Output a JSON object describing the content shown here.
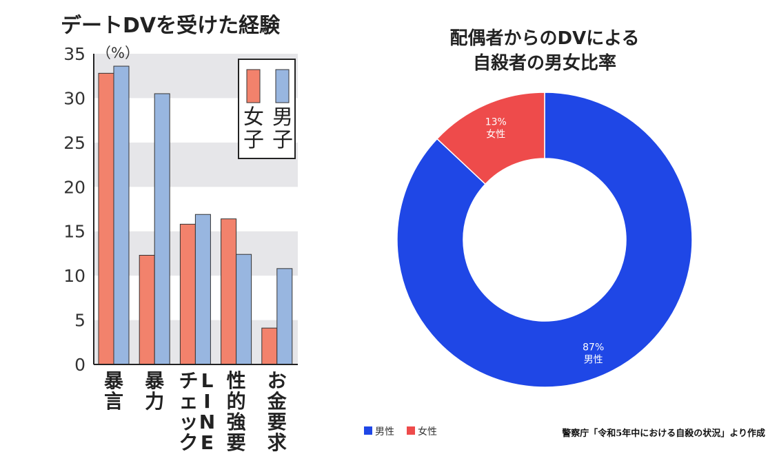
{
  "chart_data": [
    {
      "type": "bar",
      "title": "デートDVを受けた経験",
      "unit": "（%）",
      "categories": [
        "暴言",
        "暴力",
        "チェック LINE",
        "性的強要",
        "お金要求"
      ],
      "category_lines": [
        [
          "暴言"
        ],
        [
          "暴力"
        ],
        [
          "チェック",
          "LINE"
        ],
        [
          "性的強要"
        ],
        [
          "お金要求"
        ]
      ],
      "series": [
        {
          "name": "女子",
          "values": [
            32.8,
            12.3,
            15.8,
            16.4,
            4.1
          ],
          "color": "#f2826c"
        },
        {
          "name": "男子",
          "values": [
            33.6,
            30.5,
            16.9,
            12.4,
            10.8
          ],
          "color": "#98b6e0"
        }
      ],
      "ylim": [
        0,
        35
      ],
      "yticks": [
        0,
        5,
        10,
        15,
        20,
        25,
        30,
        35
      ],
      "grid": "alternating bands",
      "legend_position": "top-right"
    },
    {
      "type": "pie",
      "title_lines": [
        "配偶者からのDVによる",
        "自殺者の男女比率"
      ],
      "slices": [
        {
          "name": "男性",
          "value": 87,
          "label": "87%",
          "color": "#1f47e6"
        },
        {
          "name": "女性",
          "value": 13,
          "label": "13%",
          "color": "#ee4b4b"
        }
      ],
      "legend_position": "bottom-left",
      "source": "警察庁「令和5年中における自殺の状況」より作成"
    }
  ]
}
